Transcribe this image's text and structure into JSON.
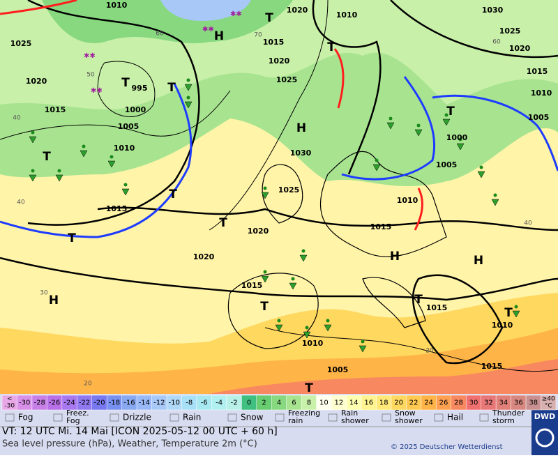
{
  "map": {
    "isobar_labels": [
      "1010",
      "1025",
      "1020",
      "1015",
      "995",
      "1000",
      "1005",
      "1010",
      "1015",
      "1020",
      "1020",
      "1030",
      "1025",
      "1025",
      "1020",
      "1015",
      "1020",
      "1010",
      "1030",
      "1025",
      "1020",
      "1015",
      "1010",
      "1005",
      "1000",
      "1005",
      "1010",
      "1015",
      "1015",
      "1010",
      "1005",
      "1015",
      "1010",
      "1015"
    ],
    "high_labels": [
      "H",
      "H",
      "H",
      "H",
      "H"
    ],
    "low_labels": [
      "T",
      "T",
      "T",
      "T",
      "T",
      "T",
      "T",
      "T",
      "T",
      "T",
      "T",
      "T",
      "T"
    ],
    "temperature_contour_labels": [
      "60",
      "50",
      "40",
      "40",
      "30",
      "20",
      "70",
      "60",
      "40",
      "20"
    ]
  },
  "temperature_scale": {
    "first": {
      "top": "<",
      "bottom": "-30",
      "color": "#e8a8e8"
    },
    "cells": [
      {
        "label": "-30",
        "color": "#d890e8"
      },
      {
        "label": "-28",
        "color": "#c880e8"
      },
      {
        "label": "-26",
        "color": "#b870e8"
      },
      {
        "label": "-24",
        "color": "#a878f0"
      },
      {
        "label": "-22",
        "color": "#9078f0"
      },
      {
        "label": "-20",
        "color": "#7878f0"
      },
      {
        "label": "-18",
        "color": "#7890f0"
      },
      {
        "label": "-16",
        "color": "#88a8f0"
      },
      {
        "label": "-14",
        "color": "#98b8f8"
      },
      {
        "label": "-12",
        "color": "#a8c8f8"
      },
      {
        "label": "-10",
        "color": "#b0d8f8"
      },
      {
        "label": "-8",
        "color": "#a8e0f8"
      },
      {
        "label": "-6",
        "color": "#a8e8f0"
      },
      {
        "label": "-4",
        "color": "#b0f0f0"
      },
      {
        "label": "-2",
        "color": "#b8f0e8"
      },
      {
        "label": "0",
        "color": "#40c080"
      },
      {
        "label": "2",
        "color": "#68cc70"
      },
      {
        "label": "4",
        "color": "#88d880"
      },
      {
        "label": "6",
        "color": "#a8e490"
      },
      {
        "label": "8",
        "color": "#c8f0a8"
      },
      {
        "label": "10",
        "color": "#fffff0"
      },
      {
        "label": "12",
        "color": "#ffffd0"
      },
      {
        "label": "14",
        "color": "#ffffb0"
      },
      {
        "label": "16",
        "color": "#fff490"
      },
      {
        "label": "18",
        "color": "#ffe878"
      },
      {
        "label": "20",
        "color": "#ffd860"
      },
      {
        "label": "22",
        "color": "#ffc850"
      },
      {
        "label": "24",
        "color": "#ffb448"
      },
      {
        "label": "26",
        "color": "#ffa050"
      },
      {
        "label": "28",
        "color": "#f88860"
      },
      {
        "label": "30",
        "color": "#f07070"
      },
      {
        "label": "32",
        "color": "#e87878"
      },
      {
        "label": "34",
        "color": "#e08078"
      },
      {
        "label": "36",
        "color": "#d88880"
      },
      {
        "label": "38",
        "color": "#c89090"
      }
    ],
    "last": {
      "top": "≥40",
      "bottom": "°C",
      "color": "#d8b0b0"
    }
  },
  "weather_legend": [
    {
      "lines": [
        "Fog"
      ]
    },
    {
      "lines": [
        "Freez.",
        "Fog"
      ]
    },
    {
      "lines": [
        "Drizzle"
      ]
    },
    {
      "lines": [
        "Rain"
      ]
    },
    {
      "lines": [
        "Snow"
      ]
    },
    {
      "lines": [
        "Freezing",
        "rain"
      ]
    },
    {
      "lines": [
        "Rain",
        "shower"
      ]
    },
    {
      "lines": [
        "Snow",
        "shower"
      ]
    },
    {
      "lines": [
        "Hail"
      ]
    },
    {
      "lines": [
        "Thunder",
        "storm"
      ]
    }
  ],
  "footer": {
    "valid_time": "VT: 12 UTC Mi.  14 Mai [ICON 2025-05-12  00 UTC + 60 h]",
    "description": "Sea level pressure (hPa), Weather, Temperature 2m (°C)",
    "copyright": "© 2025 Deutscher Wetterdienst",
    "logo": "DWD"
  }
}
